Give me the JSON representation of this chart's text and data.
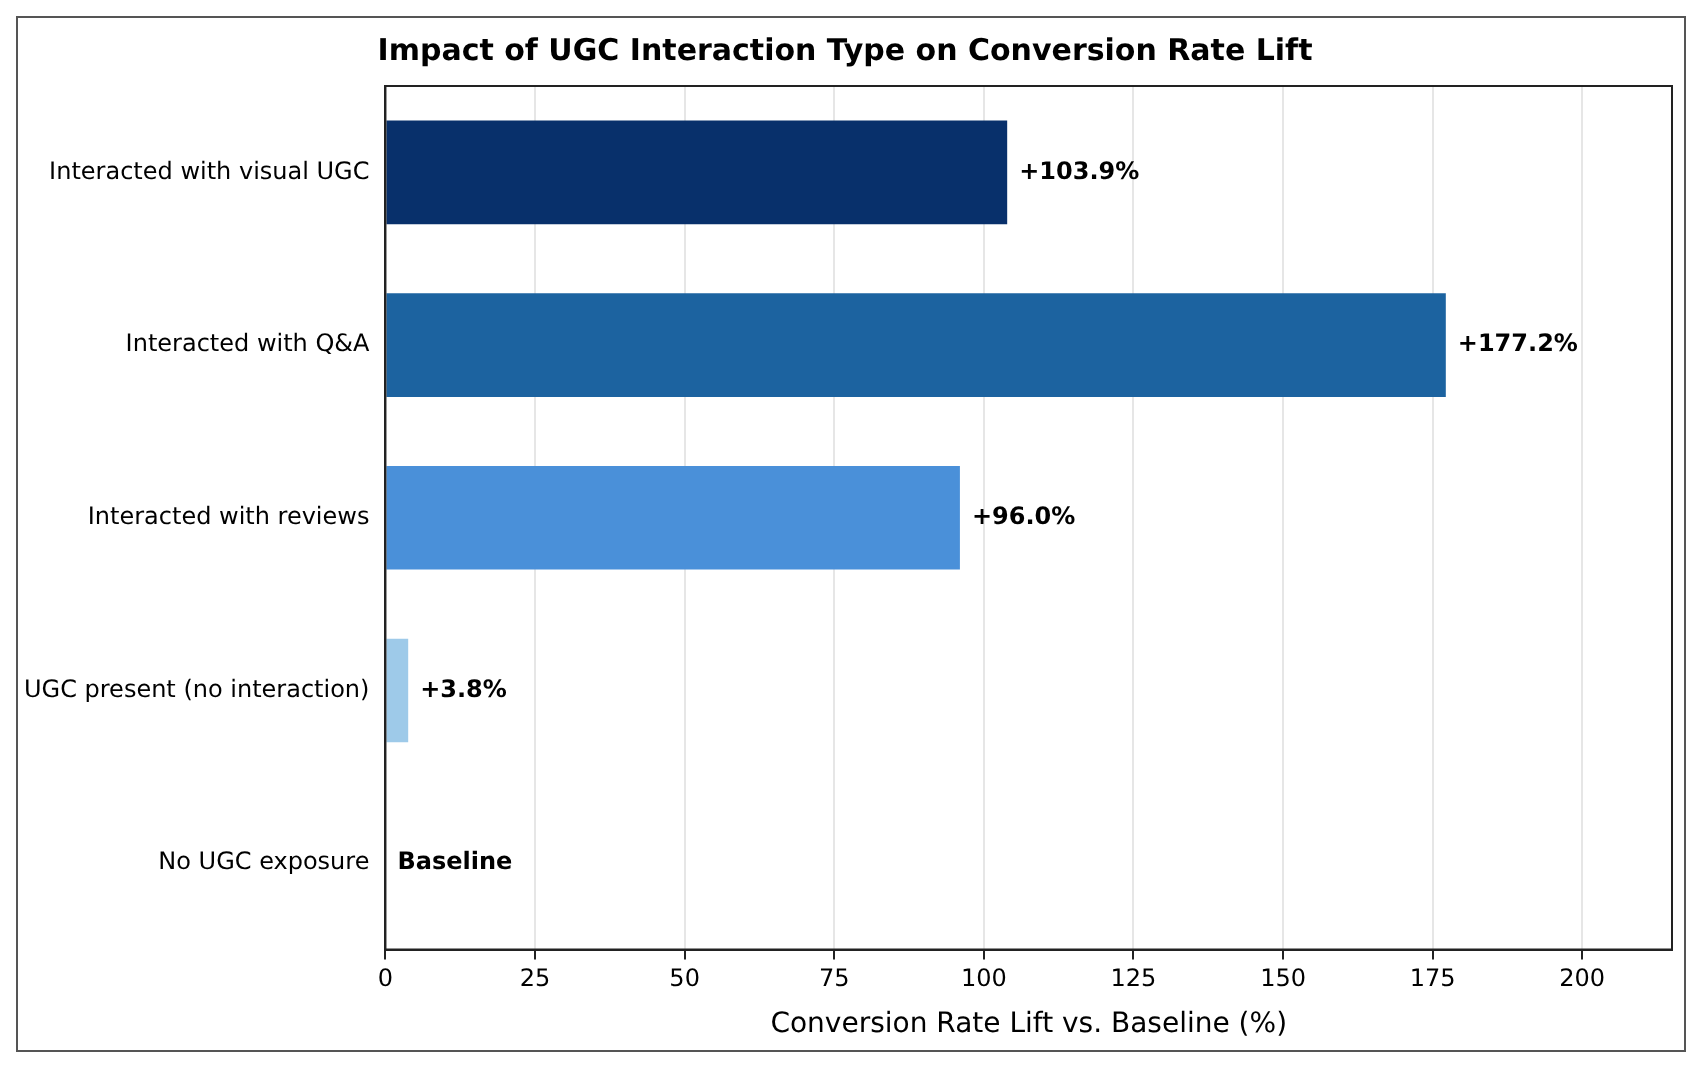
{
  "chart_data": {
    "type": "bar",
    "orientation": "horizontal",
    "title": "Impact of UGC Interaction Type on Conversion Rate Lift",
    "xlabel": "Conversion Rate Lift vs. Baseline (%)",
    "categories": [
      "Interacted with visual UGC",
      "Interacted with Q&A",
      "Interacted with reviews",
      "UGC present (no interaction)",
      "No UGC exposure"
    ],
    "values": [
      103.9,
      177.2,
      96.0,
      3.8,
      0
    ],
    "colors": [
      "#08306b",
      "#1c63a0",
      "#4a90d9",
      "#9ecae9",
      "#c6dbef"
    ],
    "value_labels": [
      "+103.9%",
      "+177.2%",
      "+96.0%",
      "+3.8%",
      "Baseline"
    ],
    "xlim": [
      0,
      215
    ],
    "xticks": [
      0,
      25,
      50,
      75,
      100,
      125,
      150,
      175,
      200
    ],
    "grid": "x",
    "legend": false
  }
}
